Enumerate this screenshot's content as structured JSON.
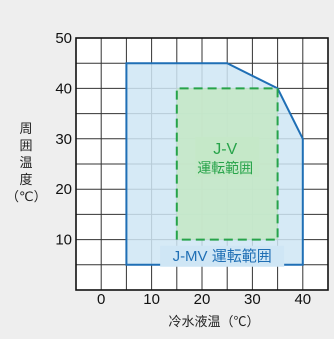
{
  "chart_data": {
    "type": "area",
    "xlabel": "冷水液温（℃）",
    "ylabel": "周囲温度（℃）",
    "xlim": [
      -5,
      45
    ],
    "ylim": [
      0,
      50
    ],
    "x_ticks": [
      0,
      10,
      20,
      30,
      40
    ],
    "y_ticks": [
      10,
      20,
      30,
      40,
      50
    ],
    "grid": true,
    "regions": [
      {
        "name": "J-MV 運転範囲",
        "label_lines": [
          "J-MV 運転範囲"
        ],
        "fill": "#cfe6f5",
        "stroke": "#1f6fb5",
        "line_style": "solid",
        "polygon": [
          [
            5,
            5
          ],
          [
            5,
            45
          ],
          [
            25,
            45
          ],
          [
            35,
            40
          ],
          [
            40,
            30
          ],
          [
            40,
            5
          ]
        ]
      },
      {
        "name": "J-V 運転範囲",
        "label_lines": [
          "J-V",
          "運転範囲"
        ],
        "fill": "#c5e8c8",
        "stroke": "#27a34a",
        "line_style": "dashed",
        "polygon": [
          [
            15,
            10
          ],
          [
            15,
            40
          ],
          [
            35,
            40
          ],
          [
            35,
            10
          ]
        ]
      }
    ]
  }
}
